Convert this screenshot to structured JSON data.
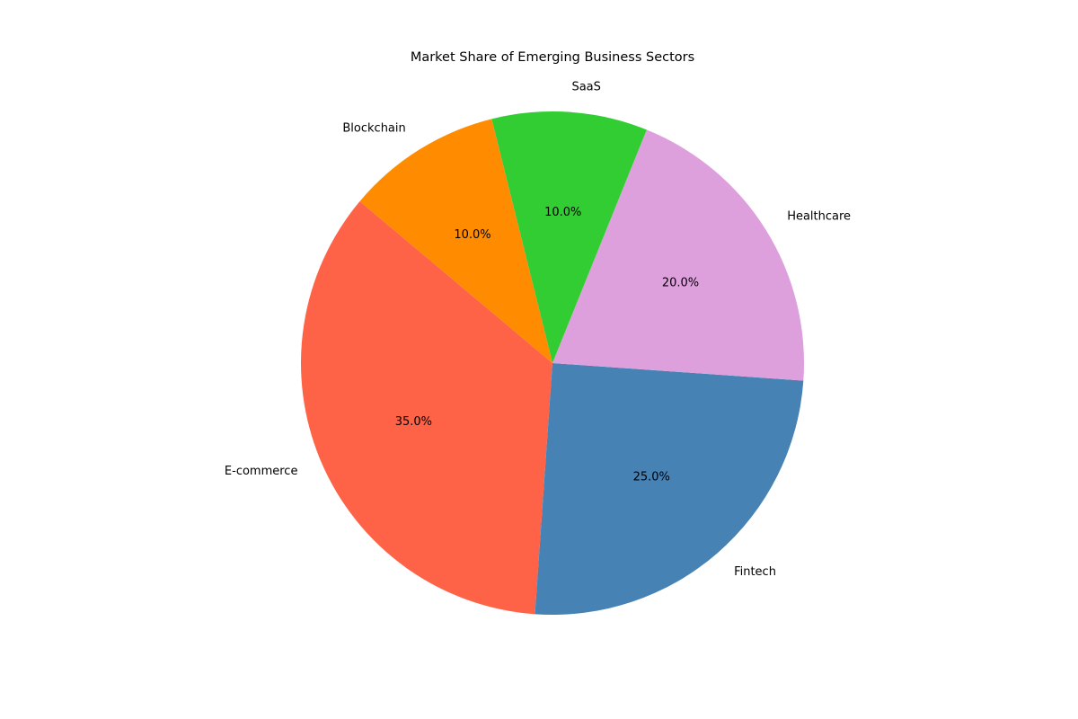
{
  "chart_data": {
    "type": "pie",
    "title": "Market Share of Emerging Business Sectors",
    "categories": [
      "E-commerce",
      "Fintech",
      "Healthcare",
      "SaaS",
      "Blockchain"
    ],
    "values": [
      35,
      25,
      20,
      10,
      10
    ],
    "percent_labels": [
      "35.0%",
      "25.0%",
      "20.0%",
      "10.0%",
      "10.0%"
    ],
    "colors": [
      "#ff6347",
      "#4682b4",
      "#dda0dd",
      "#32cd32",
      "#ff8c00"
    ],
    "start_angle_deg": 140,
    "direction": "counterclockwise",
    "legend": "none"
  }
}
